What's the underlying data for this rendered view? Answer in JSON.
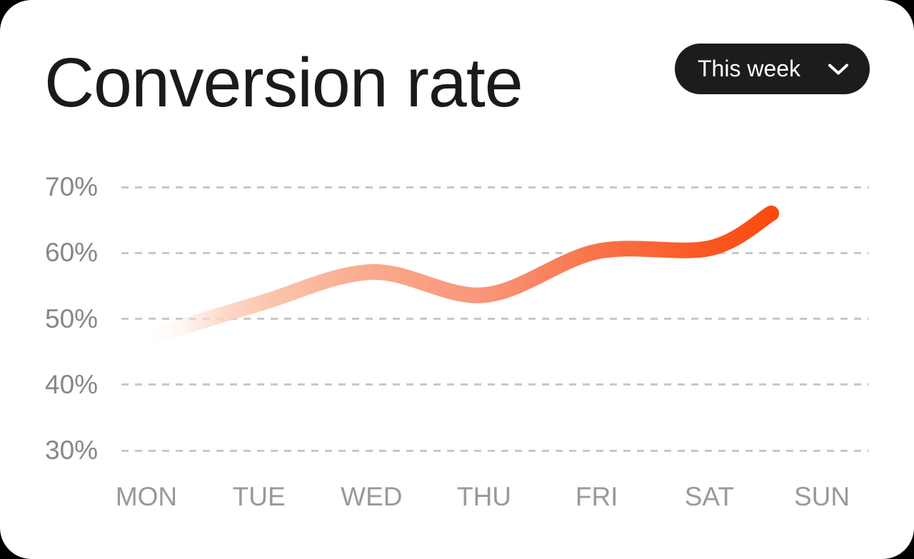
{
  "card": {
    "title": "Conversion rate",
    "period_selector": {
      "label": "This week",
      "icon": "chevron-down"
    }
  },
  "chart_data": {
    "type": "line",
    "title": "Conversion rate",
    "period": "This week",
    "categories": [
      "MON",
      "TUE",
      "WED",
      "THU",
      "FRI",
      "SAT",
      "SUN"
    ],
    "y_ticks": [
      {
        "label": "70%",
        "value": 70
      },
      {
        "label": "60%",
        "value": 60
      },
      {
        "label": "50%",
        "value": 50
      },
      {
        "label": "40%",
        "value": 40
      },
      {
        "label": "30%",
        "value": 30
      }
    ],
    "ylim": [
      25,
      75
    ],
    "grid": {
      "orientation": "horizontal",
      "style": "dashed"
    },
    "legend": "none",
    "series": [
      {
        "name": "Conversion rate",
        "unit": "%",
        "x": [
          0,
          1,
          2,
          3,
          4,
          5,
          5.55
        ],
        "values": [
          47.1,
          52.3,
          57.1,
          53.6,
          60.2,
          60.7,
          66
        ],
        "day_values": {
          "MON": 47,
          "TUE": 52,
          "WED": 57,
          "THU": 54,
          "FRI": 60,
          "SAT": 61
        },
        "current_value": 66,
        "note": "line fades in at MON and ends between SAT and SUN"
      }
    ],
    "line_style": {
      "stroke_width": 22,
      "gradient": [
        {
          "offset": 0,
          "color": "#FFFFFF",
          "opacity": 0
        },
        {
          "offset": 0.05,
          "color": "#FDE4D9",
          "opacity": 0.3
        },
        {
          "offset": 0.12,
          "color": "#FCD3C1",
          "opacity": 0.85
        },
        {
          "offset": 0.2,
          "color": "#FBC4AC",
          "opacity": 1
        },
        {
          "offset": 0.36,
          "color": "#FAA98C",
          "opacity": 1
        },
        {
          "offset": 0.54,
          "color": "#F9957A",
          "opacity": 1
        },
        {
          "offset": 0.72,
          "color": "#F97349",
          "opacity": 1
        },
        {
          "offset": 0.9,
          "color": "#FA5722",
          "opacity": 1
        },
        {
          "offset": 1,
          "color": "#FB4A10",
          "opacity": 1
        }
      ]
    }
  },
  "colors": {
    "background_outside": "#000000",
    "card_bg": "#FFFFFF",
    "title_text": "#1A1A1A",
    "y_label": "#878787",
    "x_label": "#999999",
    "gridline": "#C8C8C8",
    "button_bg": "#1C1C1E",
    "button_text": "#FFFFFF",
    "accent_line_end": "#FB4A10"
  }
}
